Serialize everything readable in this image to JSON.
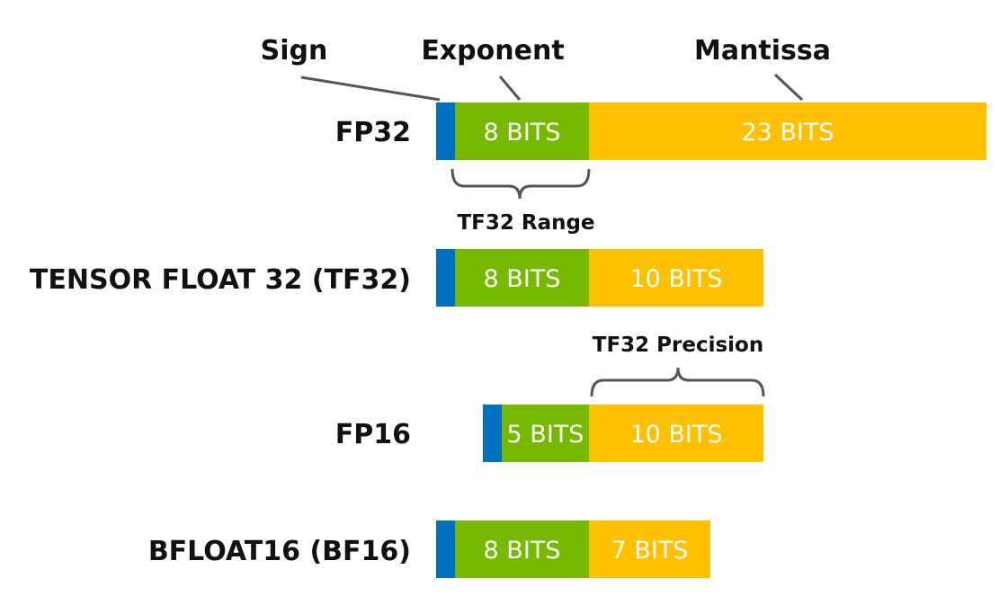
{
  "colors": {
    "sign": "#0070C0",
    "exponent": "#76B900",
    "mantissa": "#FFC000"
  },
  "headers": {
    "sign": "Sign",
    "exponent": "Exponent",
    "mantissa": "Mantissa"
  },
  "formats": [
    {
      "name": "FP32",
      "exponent_label": "8 BITS",
      "mantissa_label": "23 BITS"
    },
    {
      "name": "TENSOR FLOAT 32 (TF32)",
      "exponent_label": "8 BITS",
      "mantissa_label": "10 BITS"
    },
    {
      "name": "FP16",
      "exponent_label": "5 BITS",
      "mantissa_label": "10 BITS"
    },
    {
      "name": "BFLOAT16 (BF16)",
      "exponent_label": "8 BITS",
      "mantissa_label": "7 BITS"
    }
  ],
  "brackets": {
    "range": "TF32 Range",
    "precision": "TF32 Precision"
  }
}
